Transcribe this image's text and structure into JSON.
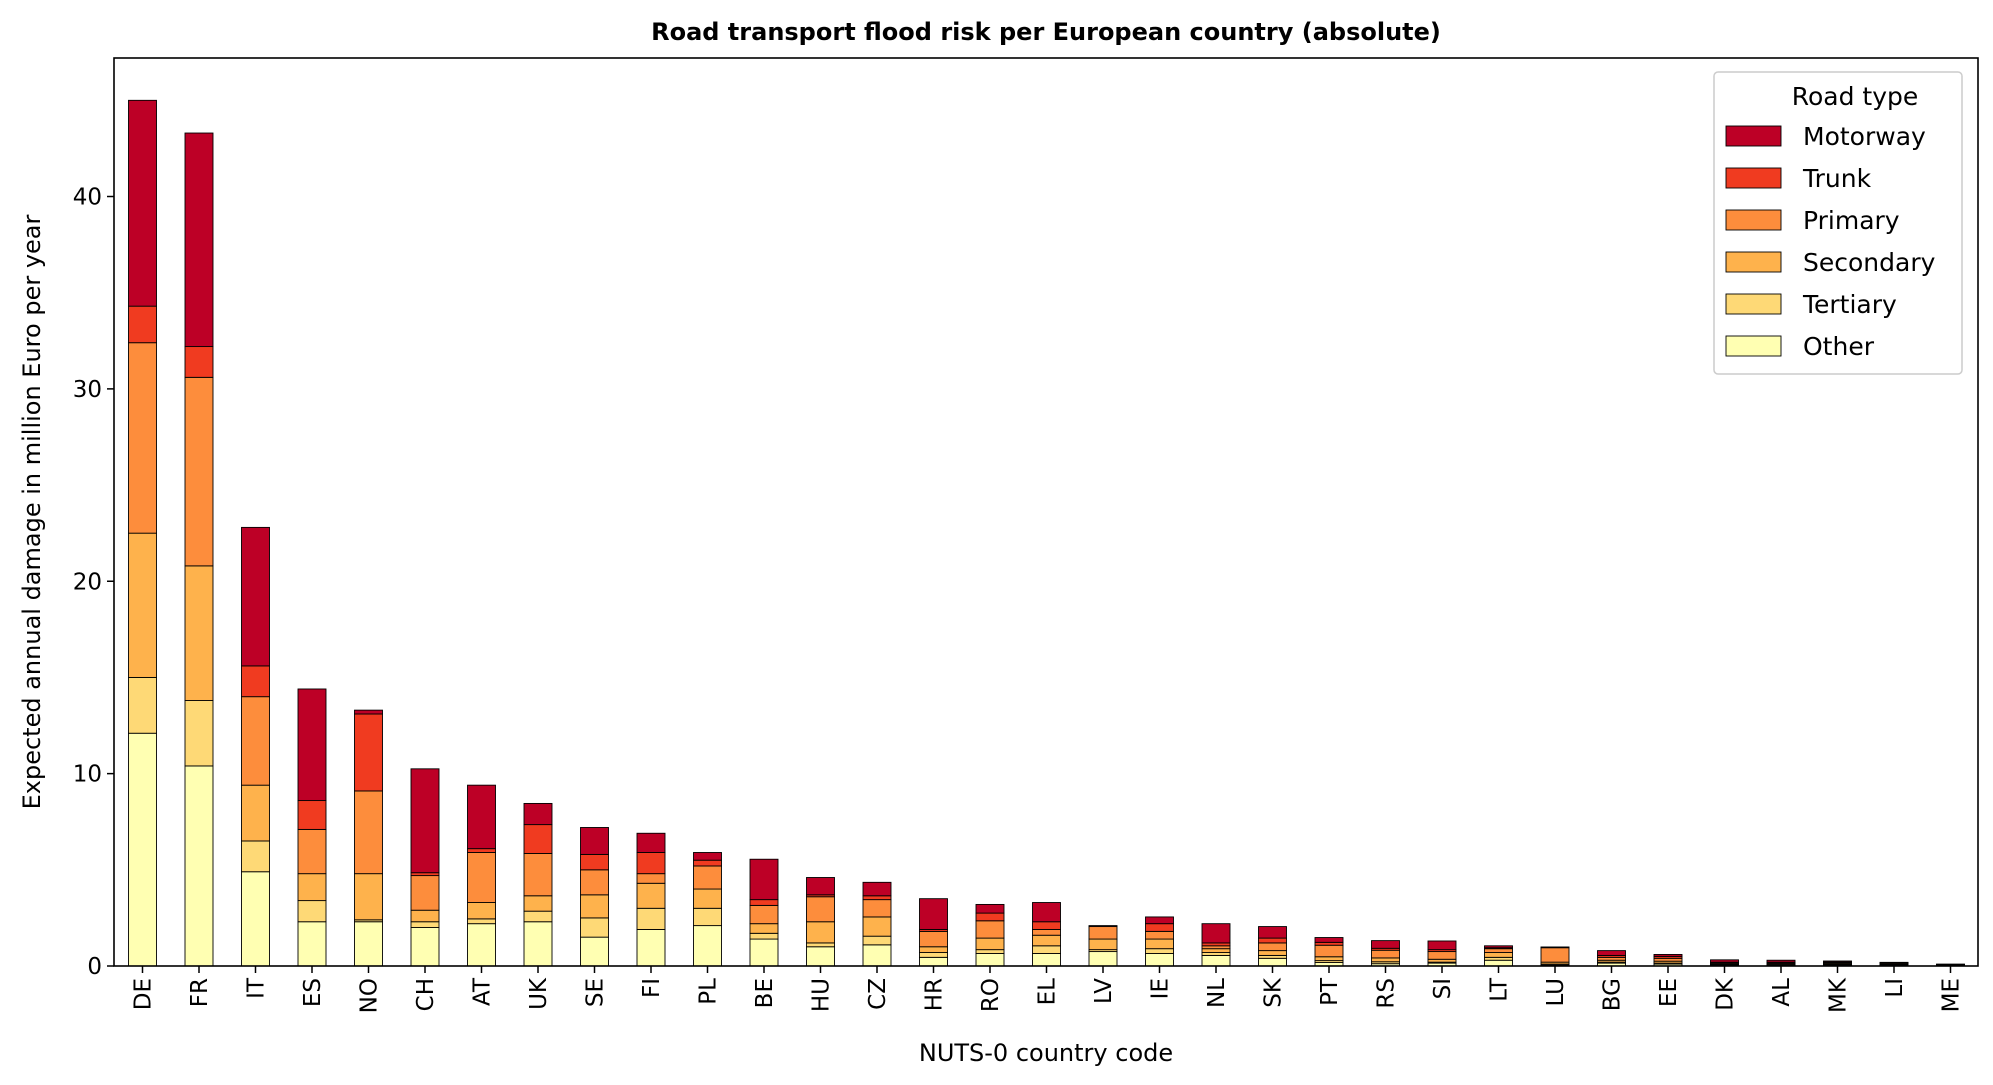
{
  "chart_data": {
    "type": "bar",
    "stacked": true,
    "title": "Road transport flood risk per European country (absolute)",
    "xlabel": "NUTS-0 country code",
    "ylabel": "Expected annual damage in million Euro per year",
    "ylim": [
      0,
      47.2
    ],
    "yticks": [
      "0",
      "10",
      "20",
      "30",
      "40"
    ],
    "grid": false,
    "legend": {
      "title": "Road type",
      "placement": "top-right"
    },
    "categories": [
      "DE",
      "FR",
      "IT",
      "ES",
      "NO",
      "CH",
      "AT",
      "UK",
      "SE",
      "FI",
      "PL",
      "BE",
      "HU",
      "CZ",
      "HR",
      "RO",
      "EL",
      "LV",
      "IE",
      "NL",
      "SK",
      "PT",
      "RS",
      "SI",
      "LT",
      "LU",
      "BG",
      "EE",
      "DK",
      "AL",
      "MK",
      "LI",
      "ME"
    ],
    "series": [
      {
        "name": "Other",
        "color": "#ffffb2",
        "values": [
          12.1,
          10.4,
          4.9,
          2.3,
          2.3,
          2.0,
          2.2,
          2.3,
          1.5,
          1.9,
          2.1,
          1.4,
          1.0,
          1.1,
          0.45,
          0.65,
          0.65,
          0.75,
          0.65,
          0.55,
          0.4,
          0.18,
          0.12,
          0.15,
          0.3,
          0.05,
          0.15,
          0.1,
          0.05,
          0.05,
          0.05,
          0.05,
          0.02
        ]
      },
      {
        "name": "Tertiary",
        "color": "#fed976",
        "values": [
          2.9,
          3.4,
          1.6,
          1.1,
          0.1,
          0.3,
          0.25,
          0.55,
          1.0,
          1.1,
          0.9,
          0.3,
          0.2,
          0.45,
          0.25,
          0.2,
          0.4,
          0.1,
          0.25,
          0.15,
          0.15,
          0.1,
          0.1,
          0.05,
          0.15,
          0.05,
          0.05,
          0.05,
          0.03,
          0.02,
          0.03,
          0.03,
          0.01
        ]
      },
      {
        "name": "Secondary",
        "color": "#feb24c",
        "values": [
          7.5,
          7.0,
          2.9,
          1.4,
          2.4,
          0.6,
          0.85,
          0.8,
          1.2,
          1.3,
          1.0,
          0.5,
          1.1,
          1.0,
          0.3,
          0.6,
          0.55,
          0.55,
          0.5,
          0.2,
          0.25,
          0.2,
          0.2,
          0.15,
          0.25,
          0.1,
          0.1,
          0.1,
          0.05,
          0.05,
          0.05,
          0.04,
          0.02
        ]
      },
      {
        "name": "Primary",
        "color": "#fd8d3c",
        "values": [
          9.9,
          9.8,
          4.6,
          2.3,
          4.3,
          1.8,
          2.6,
          2.2,
          1.3,
          0.5,
          1.2,
          0.95,
          1.3,
          0.9,
          0.8,
          0.9,
          0.3,
          0.65,
          0.4,
          0.15,
          0.4,
          0.6,
          0.4,
          0.4,
          0.2,
          0.75,
          0.15,
          0.15,
          0.05,
          0.05,
          0.05,
          0.05,
          0.02
        ]
      },
      {
        "name": "Trunk",
        "color": "#f03b20",
        "values": [
          1.9,
          1.6,
          1.6,
          1.5,
          4.0,
          0.15,
          0.2,
          1.5,
          0.8,
          1.1,
          0.3,
          0.3,
          0.1,
          0.2,
          0.1,
          0.4,
          0.4,
          0.05,
          0.4,
          0.15,
          0.25,
          0.15,
          0.1,
          0.1,
          0.05,
          0.02,
          0.1,
          0.1,
          0.02,
          0.03,
          0.03,
          0.02,
          0.01
        ]
      },
      {
        "name": "Motorway",
        "color": "#bd0026",
        "values": [
          10.7,
          11.1,
          7.2,
          5.8,
          0.2,
          5.4,
          3.3,
          1.1,
          1.4,
          1.0,
          0.4,
          2.1,
          0.9,
          0.7,
          1.6,
          0.45,
          1.0,
          0.0,
          0.35,
          1.0,
          0.6,
          0.25,
          0.4,
          0.45,
          0.1,
          0.02,
          0.25,
          0.1,
          0.12,
          0.1,
          0.05,
          0.0,
          0.02
        ]
      }
    ]
  }
}
